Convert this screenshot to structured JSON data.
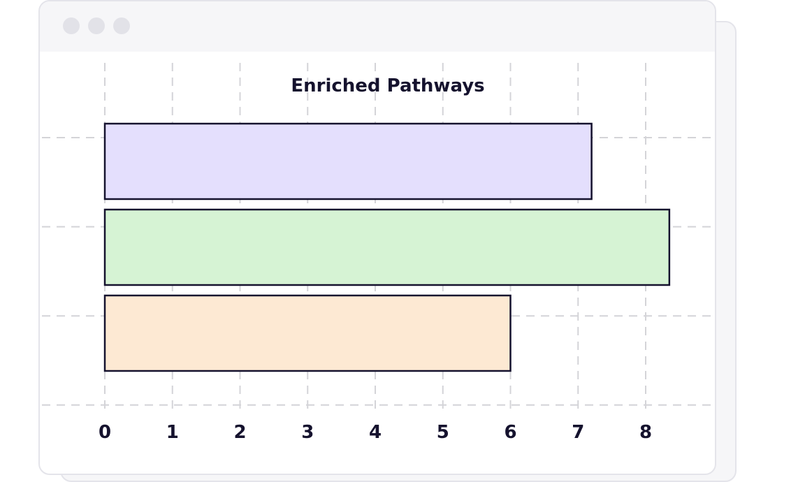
{
  "window": {
    "controls": [
      "window-dot",
      "window-dot",
      "window-dot"
    ]
  },
  "colors": {
    "bar_purple": "#e4dffd",
    "bar_green": "#d6f3d4",
    "bar_peach": "#fde9d3",
    "outline": "#15122e",
    "grid": "#d4d4d8"
  },
  "chart_data": {
    "type": "bar",
    "orientation": "horizontal",
    "title": "Enriched Pathways",
    "xlabel": "",
    "ylabel": "",
    "xlim": [
      0,
      8
    ],
    "xticks": [
      "0",
      "1",
      "2",
      "3",
      "4",
      "5",
      "6",
      "7",
      "8"
    ],
    "categories": [
      "",
      "",
      ""
    ],
    "values": [
      7.2,
      8.35,
      6.0
    ],
    "bar_colors": [
      "#e4dffd",
      "#d6f3d4",
      "#fde9d3"
    ],
    "grid": true,
    "legend": "none"
  }
}
